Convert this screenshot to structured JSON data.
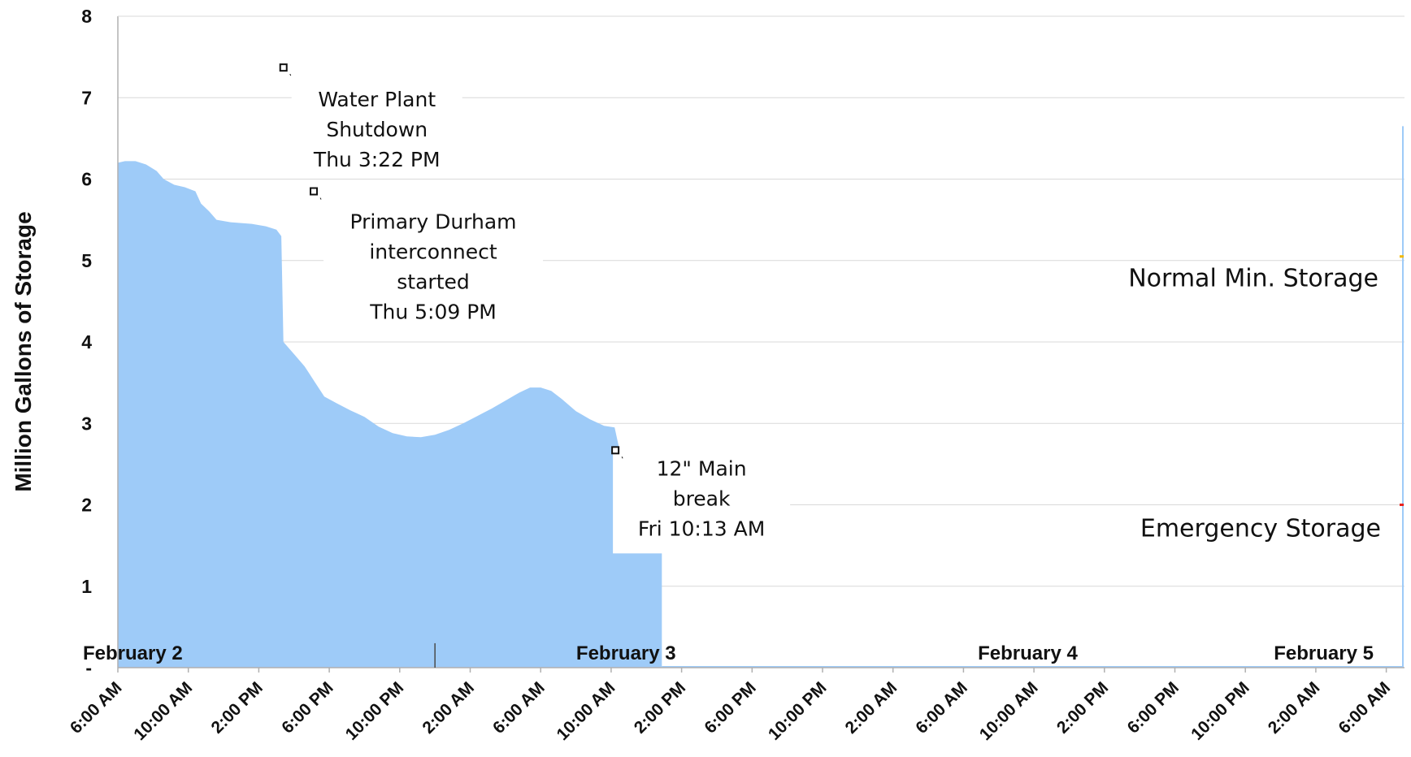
{
  "chart_data": {
    "type": "area",
    "title": "",
    "ylabel": "Million Gallons of Storage",
    "xlabel": "",
    "ylim": [
      0,
      8
    ],
    "grid": true,
    "y_ticks": [
      "-",
      "1",
      "2",
      "3",
      "4",
      "5",
      "6",
      "7",
      "8"
    ],
    "x_start": "6:00 AM",
    "x_step_hours": 4,
    "x_ticks": [
      "6:00 AM",
      "10:00 AM",
      "2:00 PM",
      "6:00 PM",
      "10:00 PM",
      "2:00 AM",
      "6:00 AM",
      "10:00 AM",
      "2:00 PM",
      "6:00 PM",
      "10:00 PM",
      "2:00 AM",
      "6:00 AM",
      "10:00 AM",
      "2:00 PM",
      "6:00 PM",
      "10:00 PM",
      "2:00 AM",
      "6:00 AM"
    ],
    "date_labels": [
      {
        "text": "February 2",
        "tick": 0.6
      },
      {
        "text": "February 3",
        "tick": 7.6
      },
      {
        "text": "February 4",
        "tick": 13.3
      },
      {
        "text": "February 5",
        "tick": 17.5
      }
    ],
    "series": [
      {
        "color": "#9ecbf8",
        "points": [
          {
            "x": 0.0,
            "y": 6.2
          },
          {
            "x": 0.1,
            "y": 6.22
          },
          {
            "x": 0.25,
            "y": 6.22
          },
          {
            "x": 0.4,
            "y": 6.18
          },
          {
            "x": 0.55,
            "y": 6.1
          },
          {
            "x": 0.65,
            "y": 6.0
          },
          {
            "x": 0.8,
            "y": 5.93
          },
          {
            "x": 0.95,
            "y": 5.9
          },
          {
            "x": 1.1,
            "y": 5.85
          },
          {
            "x": 1.18,
            "y": 5.7
          },
          {
            "x": 1.3,
            "y": 5.6
          },
          {
            "x": 1.4,
            "y": 5.5
          },
          {
            "x": 1.6,
            "y": 5.47
          },
          {
            "x": 1.9,
            "y": 5.45
          },
          {
            "x": 2.1,
            "y": 5.42
          },
          {
            "x": 2.25,
            "y": 5.38
          },
          {
            "x": 2.32,
            "y": 5.3
          },
          {
            "x": 2.35,
            "y": 4.0
          },
          {
            "x": 2.5,
            "y": 3.85
          },
          {
            "x": 2.65,
            "y": 3.7
          },
          {
            "x": 2.8,
            "y": 3.5
          },
          {
            "x": 2.93,
            "y": 3.33
          },
          {
            "x": 3.1,
            "y": 3.25
          },
          {
            "x": 3.3,
            "y": 3.16
          },
          {
            "x": 3.5,
            "y": 3.08
          },
          {
            "x": 3.7,
            "y": 2.96
          },
          {
            "x": 3.9,
            "y": 2.88
          },
          {
            "x": 4.1,
            "y": 2.84
          },
          {
            "x": 4.3,
            "y": 2.83
          },
          {
            "x": 4.5,
            "y": 2.86
          },
          {
            "x": 4.7,
            "y": 2.92
          },
          {
            "x": 4.9,
            "y": 3.0
          },
          {
            "x": 5.1,
            "y": 3.09
          },
          {
            "x": 5.3,
            "y": 3.18
          },
          {
            "x": 5.5,
            "y": 3.28
          },
          {
            "x": 5.7,
            "y": 3.38
          },
          {
            "x": 5.85,
            "y": 3.44
          },
          {
            "x": 6.0,
            "y": 3.44
          },
          {
            "x": 6.15,
            "y": 3.4
          },
          {
            "x": 6.3,
            "y": 3.3
          },
          {
            "x": 6.5,
            "y": 3.15
          },
          {
            "x": 6.7,
            "y": 3.05
          },
          {
            "x": 6.9,
            "y": 2.97
          },
          {
            "x": 7.05,
            "y": 2.95
          },
          {
            "x": 7.15,
            "y": 2.55
          },
          {
            "x": 7.3,
            "y": 2.1
          },
          {
            "x": 7.42,
            "y": 1.8
          },
          {
            "x": 7.55,
            "y": 1.76
          },
          {
            "x": 7.72,
            "y": 1.74
          }
        ]
      }
    ],
    "reference_lines": [
      {
        "label": "Normal Min. Storage",
        "y": 5.05,
        "color": "#f2b800"
      },
      {
        "label": "Emergency Storage",
        "y": 2.0,
        "color": "#e8231f"
      }
    ],
    "annotations": [
      {
        "lines": [
          "Water Plant",
          "Shutdown",
          "Thu 3:22 PM"
        ],
        "x": 2.35,
        "y": 7.37
      },
      {
        "lines": [
          "Primary Durham",
          "interconnect",
          "started",
          "Thu 5:09 PM"
        ],
        "x": 2.78,
        "y": 5.85
      },
      {
        "lines": [
          "12\" Main",
          "break",
          "Fri  10:13 AM"
        ],
        "x": 7.06,
        "y": 2.67
      }
    ]
  }
}
